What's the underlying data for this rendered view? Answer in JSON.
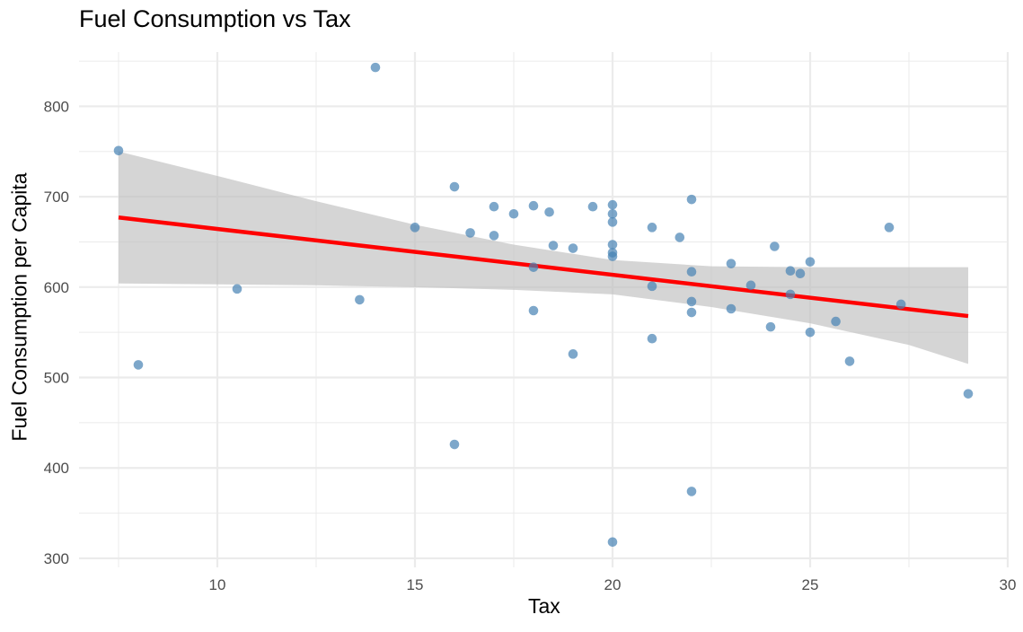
{
  "chart_data": {
    "type": "scatter",
    "title": "Fuel Consumption vs Tax",
    "xlabel": "Tax",
    "ylabel": "Fuel Consumption per Capita",
    "xlim": [
      6.5,
      30.0
    ],
    "ylim": [
      290,
      860
    ],
    "x_ticks": [
      10,
      15,
      20,
      25,
      30
    ],
    "y_ticks": [
      300,
      400,
      500,
      600,
      700,
      800
    ],
    "x_tick_labels": [
      "10",
      "15",
      "20",
      "25",
      "30"
    ],
    "y_tick_labels": [
      "300",
      "400",
      "500",
      "600",
      "700",
      "800"
    ],
    "grid": true,
    "legend": "none",
    "colors": {
      "points": "#4682B4",
      "trend_line": "#FF0000",
      "confidence_band": "#BEBEBE",
      "grid": "#EBEBEB"
    },
    "points": [
      {
        "x": 7.5,
        "y": 751
      },
      {
        "x": 8.0,
        "y": 514
      },
      {
        "x": 10.5,
        "y": 598
      },
      {
        "x": 13.6,
        "y": 586
      },
      {
        "x": 14.0,
        "y": 843
      },
      {
        "x": 15.0,
        "y": 666
      },
      {
        "x": 16.0,
        "y": 711
      },
      {
        "x": 16.0,
        "y": 426
      },
      {
        "x": 16.4,
        "y": 660
      },
      {
        "x": 17.0,
        "y": 689
      },
      {
        "x": 17.0,
        "y": 657
      },
      {
        "x": 17.5,
        "y": 681
      },
      {
        "x": 18.0,
        "y": 690
      },
      {
        "x": 18.0,
        "y": 622
      },
      {
        "x": 18.0,
        "y": 574
      },
      {
        "x": 18.4,
        "y": 683
      },
      {
        "x": 18.5,
        "y": 646
      },
      {
        "x": 19.0,
        "y": 643
      },
      {
        "x": 19.0,
        "y": 526
      },
      {
        "x": 19.5,
        "y": 689
      },
      {
        "x": 20.0,
        "y": 691
      },
      {
        "x": 20.0,
        "y": 681
      },
      {
        "x": 20.0,
        "y": 672
      },
      {
        "x": 20.0,
        "y": 647
      },
      {
        "x": 20.0,
        "y": 638
      },
      {
        "x": 20.0,
        "y": 634
      },
      {
        "x": 20.0,
        "y": 318
      },
      {
        "x": 21.0,
        "y": 666
      },
      {
        "x": 21.0,
        "y": 601
      },
      {
        "x": 21.0,
        "y": 543
      },
      {
        "x": 21.7,
        "y": 655
      },
      {
        "x": 22.0,
        "y": 697
      },
      {
        "x": 22.0,
        "y": 617
      },
      {
        "x": 22.0,
        "y": 584
      },
      {
        "x": 22.0,
        "y": 572
      },
      {
        "x": 22.0,
        "y": 374
      },
      {
        "x": 23.0,
        "y": 626
      },
      {
        "x": 23.0,
        "y": 576
      },
      {
        "x": 23.5,
        "y": 602
      },
      {
        "x": 24.0,
        "y": 556
      },
      {
        "x": 24.1,
        "y": 645
      },
      {
        "x": 24.5,
        "y": 618
      },
      {
        "x": 24.5,
        "y": 592
      },
      {
        "x": 24.75,
        "y": 615
      },
      {
        "x": 25.0,
        "y": 628
      },
      {
        "x": 25.0,
        "y": 550
      },
      {
        "x": 25.65,
        "y": 562
      },
      {
        "x": 26.0,
        "y": 518
      },
      {
        "x": 27.0,
        "y": 666
      },
      {
        "x": 27.3,
        "y": 581
      },
      {
        "x": 29.0,
        "y": 482
      }
    ],
    "trend_line": {
      "x": [
        7.5,
        29.0
      ],
      "y": [
        677,
        568
      ]
    },
    "confidence_band": {
      "x": [
        7.5,
        10,
        12.5,
        15,
        17.5,
        20,
        22.5,
        25,
        27.5,
        29
      ],
      "lower": [
        604,
        603,
        602,
        600,
        597,
        592,
        578,
        560,
        536,
        515
      ],
      "upper": [
        750,
        723,
        695,
        669,
        647,
        630,
        623,
        622,
        622,
        622
      ]
    }
  }
}
